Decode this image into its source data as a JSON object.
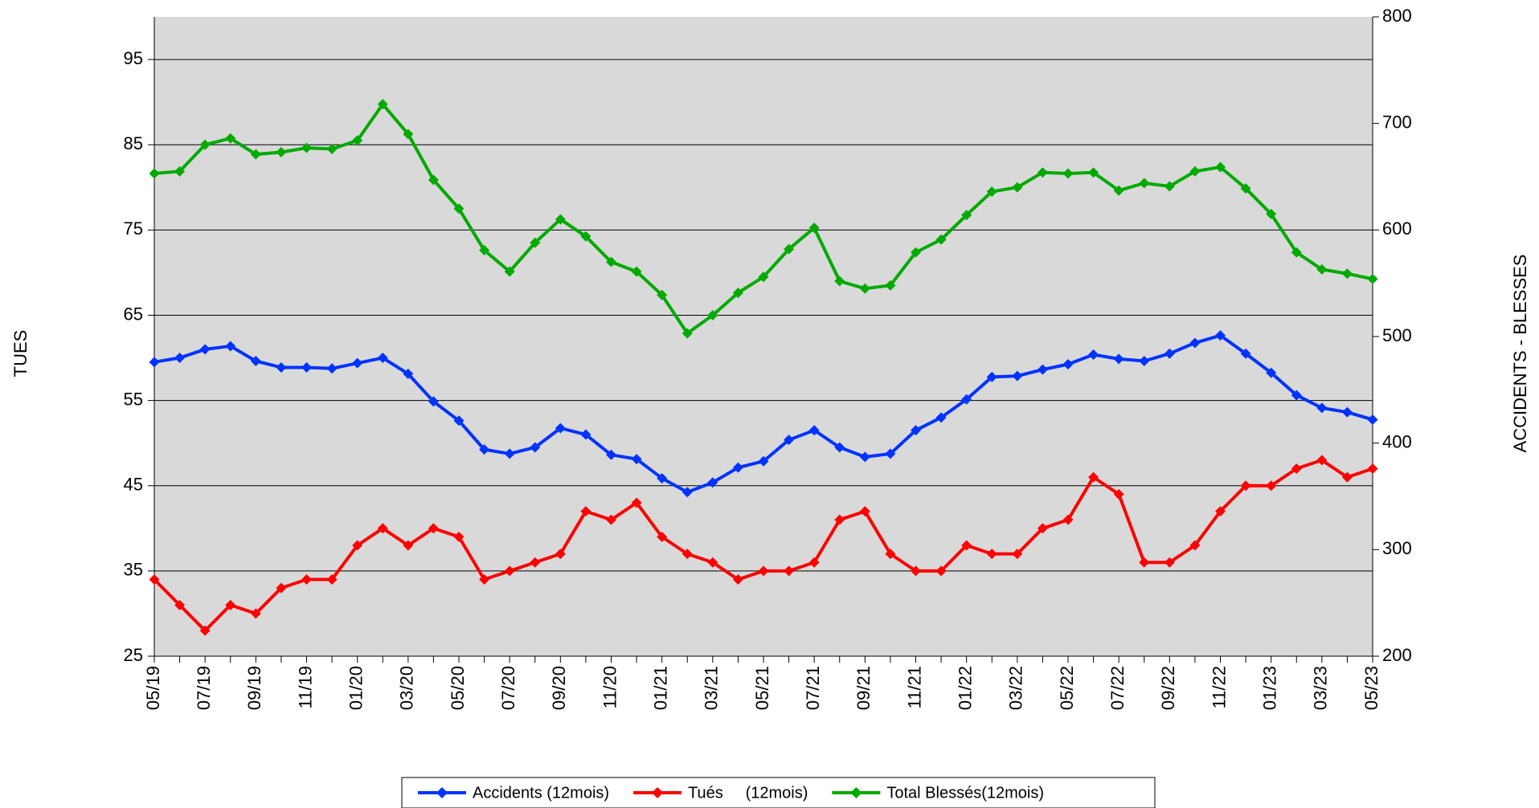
{
  "chart_data": {
    "type": "line",
    "x": [
      "05/19",
      null,
      "07/19",
      null,
      "09/19",
      null,
      "11/19",
      null,
      "01/20",
      null,
      "03/20",
      null,
      "05/20",
      null,
      "07/20",
      null,
      "09/20",
      null,
      "11/20",
      null,
      "01/21",
      null,
      "03/21",
      null,
      "05/21",
      null,
      "07/21",
      null,
      "09/21",
      null,
      "11/21",
      null,
      "01/22",
      null,
      "03/22",
      null,
      "05/22",
      null,
      "07/22",
      null,
      "09/22",
      null,
      "11/22",
      null,
      "01/23",
      null,
      "03/23",
      null,
      "05/23"
    ],
    "y_label": "TUES",
    "y2_label": "ACCIDENTS - BLESSES",
    "ylim": [
      25,
      100
    ],
    "yticks": [
      25,
      35,
      45,
      55,
      65,
      75,
      85,
      95
    ],
    "y2lim": [
      200,
      800
    ],
    "y2ticks": [
      200,
      300,
      400,
      500,
      600,
      700,
      800
    ],
    "grid": true,
    "legend": "bottom",
    "series": [
      {
        "name": "Accidents (12mois)",
        "color": "#0033ff",
        "axis": "y2",
        "values": [
          476,
          480,
          488,
          491,
          477,
          471,
          471,
          470,
          475,
          480,
          465,
          439,
          421,
          394,
          390,
          396,
          414,
          408,
          389,
          385,
          367,
          354,
          363,
          377,
          383,
          403,
          412,
          396,
          387,
          390,
          412,
          424,
          441,
          462,
          463,
          469,
          474,
          483,
          479,
          477,
          484,
          494,
          501,
          484,
          466,
          445,
          433,
          429,
          422
        ]
      },
      {
        "name": "Tués     (12mois)",
        "color": "#ff0000",
        "values": [
          34,
          31,
          28,
          31,
          30,
          33,
          34,
          34,
          38,
          40,
          38,
          40,
          39,
          34,
          35,
          36,
          37,
          42,
          41,
          43,
          39,
          37,
          36,
          34,
          35,
          35,
          36,
          41,
          42,
          37,
          35,
          35,
          38,
          37,
          37,
          40,
          41,
          46,
          44,
          36,
          36,
          38,
          42,
          45,
          45,
          47,
          48,
          46,
          47
        ]
      },
      {
        "name": "Total Blessés(12mois)",
        "color": "#00aa00",
        "axis": "y2",
        "values": [
          653,
          655,
          680,
          686,
          671,
          673,
          677,
          676,
          684,
          718,
          690,
          647,
          620,
          581,
          561,
          588,
          610,
          594,
          570,
          561,
          539,
          503,
          520,
          541,
          556,
          582,
          602,
          552,
          545,
          548,
          579,
          591,
          614,
          636,
          640,
          654,
          653,
          654,
          637,
          644,
          641,
          655,
          659,
          639,
          615,
          579,
          563,
          559,
          554
        ]
      }
    ]
  }
}
